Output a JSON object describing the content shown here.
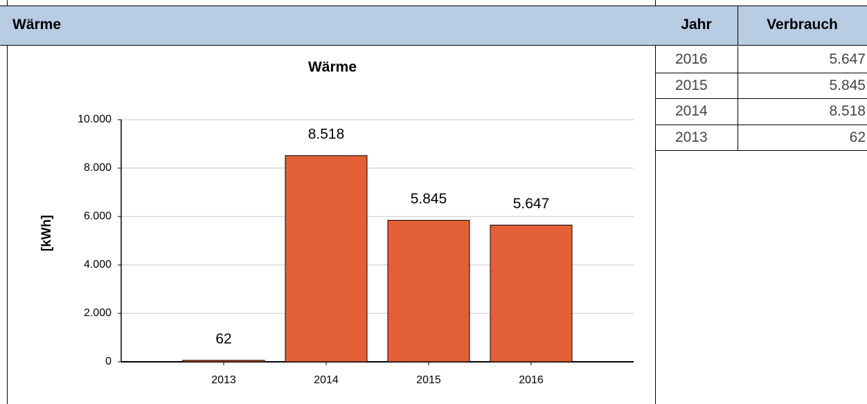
{
  "header": {
    "title": "Wärme"
  },
  "chart_data": {
    "type": "bar",
    "title": "Wärme",
    "y_label": "[kWh]",
    "categories": [
      "2013",
      "2014",
      "2015",
      "2016"
    ],
    "values": [
      62,
      8518,
      5845,
      5647
    ],
    "value_labels": [
      "62",
      "8.518",
      "5.845",
      "5.647"
    ],
    "color": "#e35f36",
    "ylim": [
      0,
      10000
    ],
    "yticks": [
      0,
      {
        "value": 2000,
        "label": "2.000"
      },
      {
        "value": 4000,
        "label": "4.000"
      },
      {
        "value": 6000,
        "label": "6.000"
      },
      {
        "value": 8000,
        "label": "8.000"
      },
      {
        "value": 10000,
        "label": "10.000"
      }
    ],
    "grid": true
  },
  "table": {
    "columns": [
      "Jahr",
      "Verbrauch"
    ],
    "rows": [
      [
        "2016",
        "5.647"
      ],
      [
        "2015",
        "5.845"
      ],
      [
        "2014",
        "8.518"
      ],
      [
        "2013",
        "62"
      ]
    ]
  }
}
